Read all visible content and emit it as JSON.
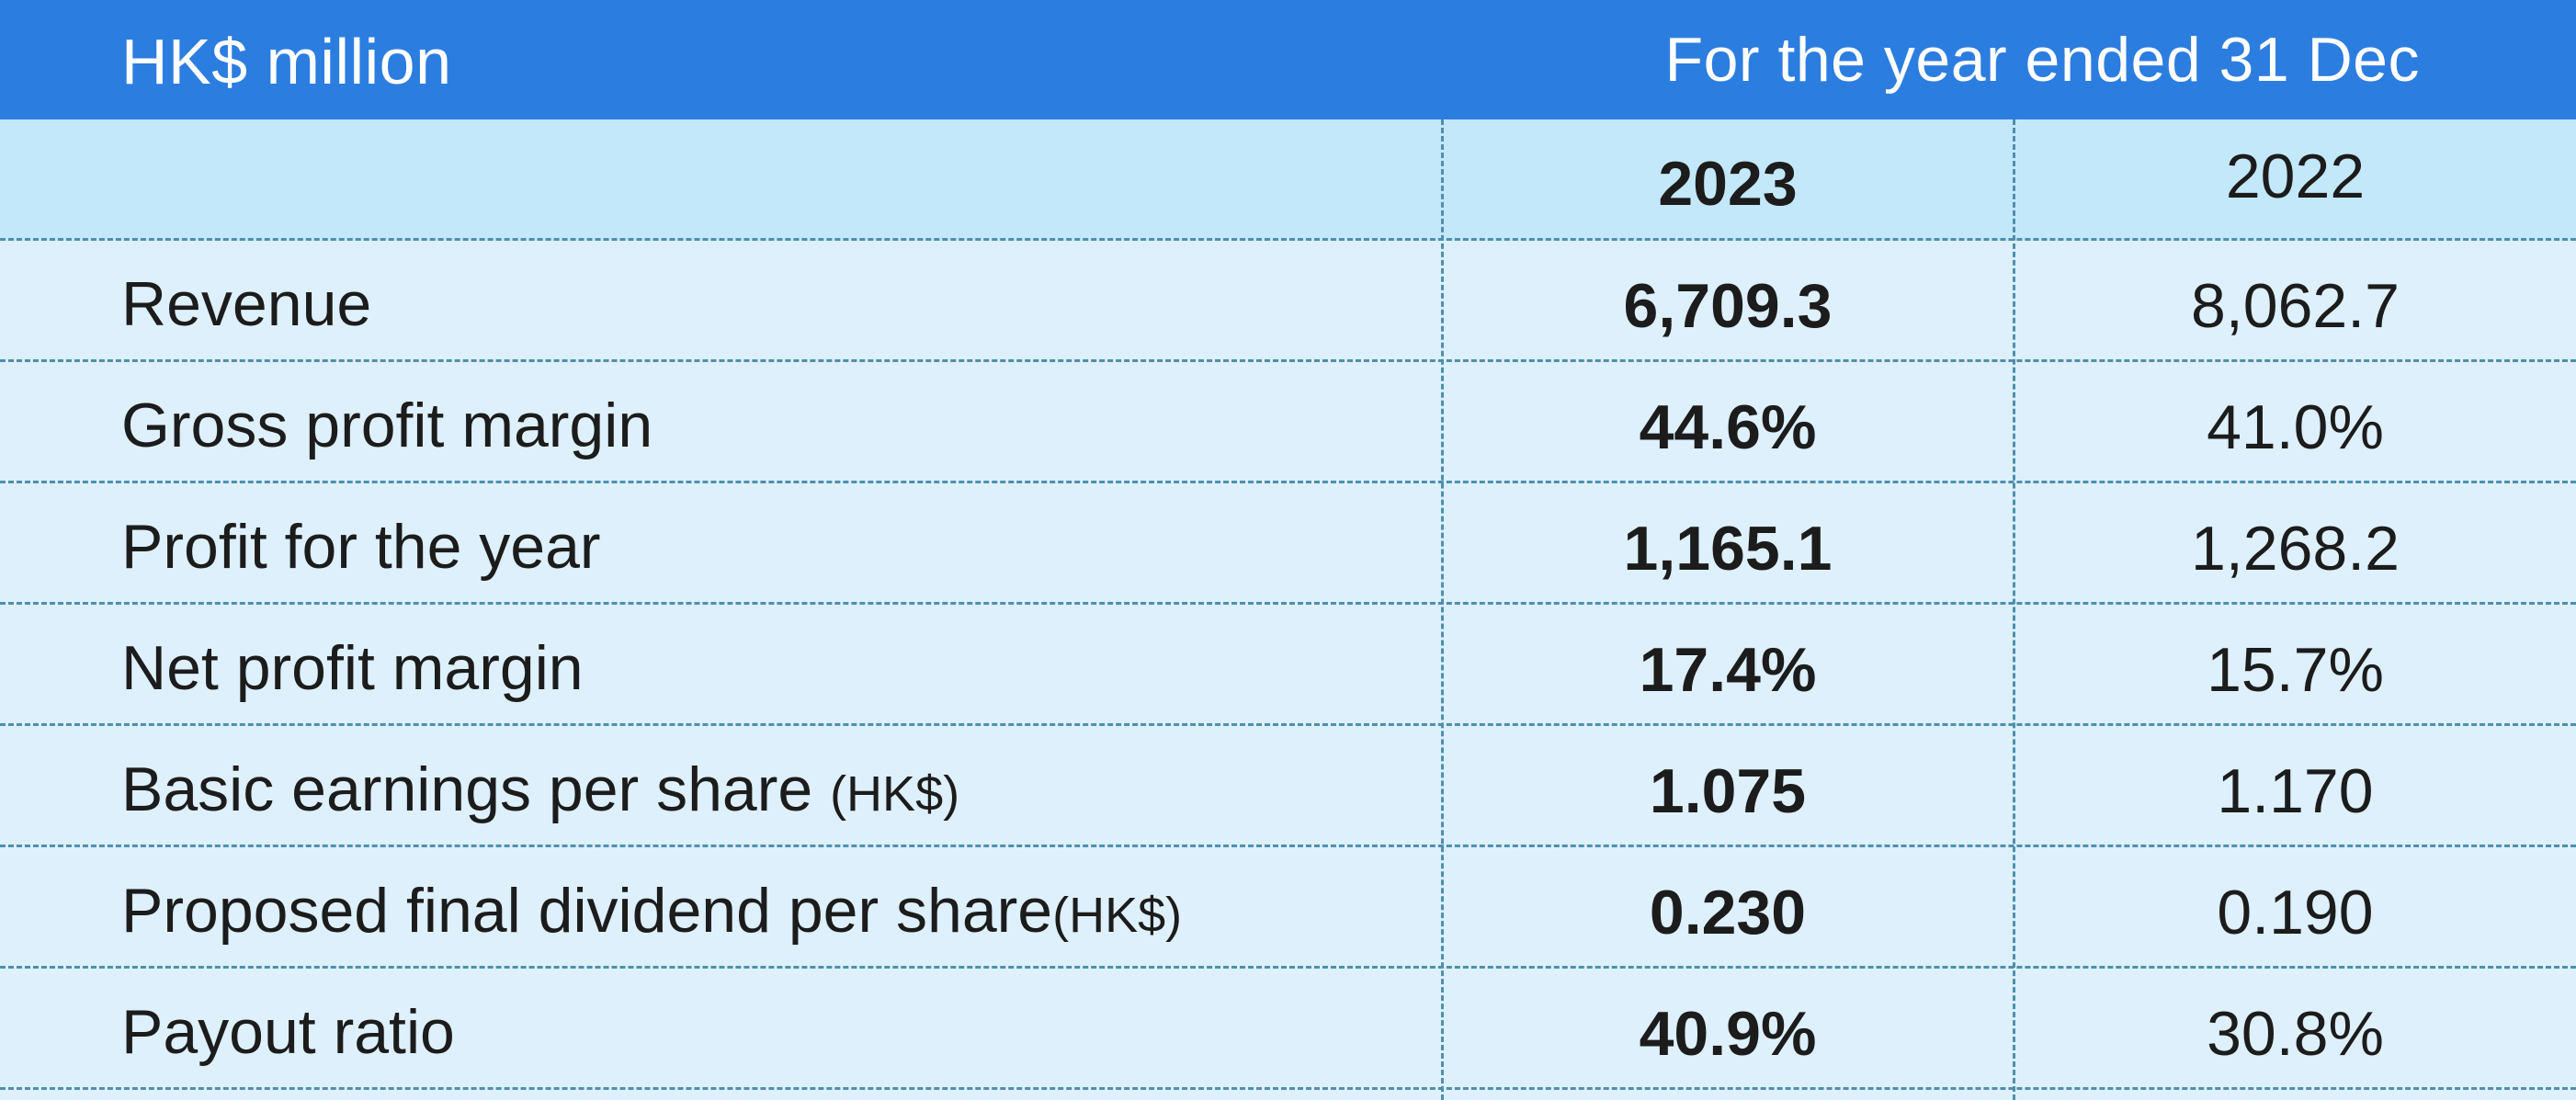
{
  "header": {
    "unit": "HK$ million",
    "period": "For the year ended 31 Dec"
  },
  "years": {
    "current": "2023",
    "prior": "2022"
  },
  "rows": [
    {
      "label": "Revenue",
      "unit": "",
      "y2023": "6,709.3",
      "y2022": "8,062.7"
    },
    {
      "label": "Gross profit margin",
      "unit": "",
      "y2023": "44.6%",
      "y2022": "41.0%"
    },
    {
      "label": "Profit for the year",
      "unit": "",
      "y2023": "1,165.1",
      "y2022": "1,268.2"
    },
    {
      "label": "Net profit margin",
      "unit": "",
      "y2023": "17.4%",
      "y2022": "15.7%"
    },
    {
      "label": "Basic earnings per share ",
      "unit": "(HK$)",
      "y2023": "1.075",
      "y2022": "1.170"
    },
    {
      "label": "Proposed final dividend per share",
      "unit": "(HK$)",
      "y2023": "0.230",
      "y2022": "0.190"
    },
    {
      "label": "Payout ratio",
      "unit": "",
      "y2023": "40.9%",
      "y2022": "30.8%"
    }
  ],
  "colors": {
    "header_bg": "#2c7de0",
    "year_row_bg": "#c3e8fa",
    "body_bg": "#ddf0fc",
    "divider": "#4f8fad"
  }
}
